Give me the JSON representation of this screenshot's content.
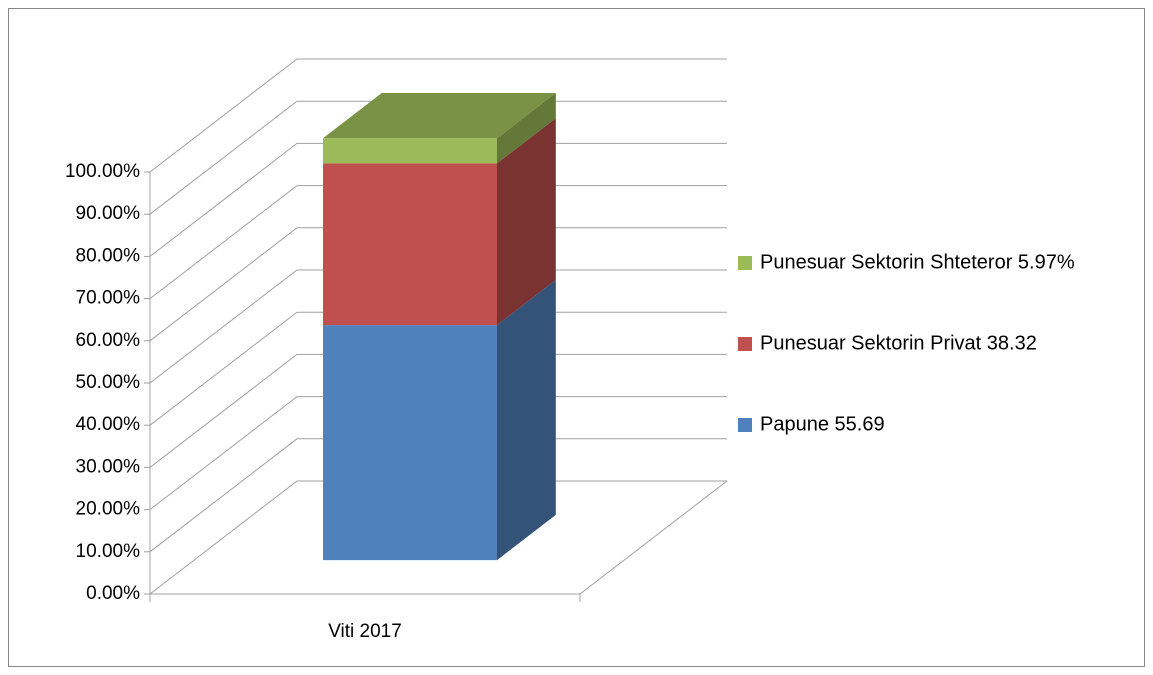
{
  "chart_data": {
    "type": "bar3d_stacked",
    "categories": [
      "Viti 2017"
    ],
    "series": [
      {
        "name": "Papune 55.69",
        "color": "#4f81bd",
        "values": [
          55.69
        ]
      },
      {
        "name": "Punesuar Sektorin Privat 38.32",
        "color": "#c0504d",
        "values": [
          38.32
        ]
      },
      {
        "name": "Punesuar Sektorin Shteteror 5.97%",
        "color": "#9bbb59",
        "values": [
          5.97
        ]
      }
    ],
    "ylim": [
      0,
      100
    ],
    "yticks": [
      {
        "value": 0,
        "label": "0.00%"
      },
      {
        "value": 10,
        "label": "10.00%"
      },
      {
        "value": 20,
        "label": "20.00%"
      },
      {
        "value": 30,
        "label": "30.00%"
      },
      {
        "value": 40,
        "label": "40.00%"
      },
      {
        "value": 50,
        "label": "50.00%"
      },
      {
        "value": 60,
        "label": "60.00%"
      },
      {
        "value": 70,
        "label": "70.00%"
      },
      {
        "value": 80,
        "label": "80.00%"
      },
      {
        "value": 90,
        "label": "90.00%"
      },
      {
        "value": 100,
        "label": "100.00%"
      }
    ],
    "grid": true,
    "legend": "right"
  }
}
